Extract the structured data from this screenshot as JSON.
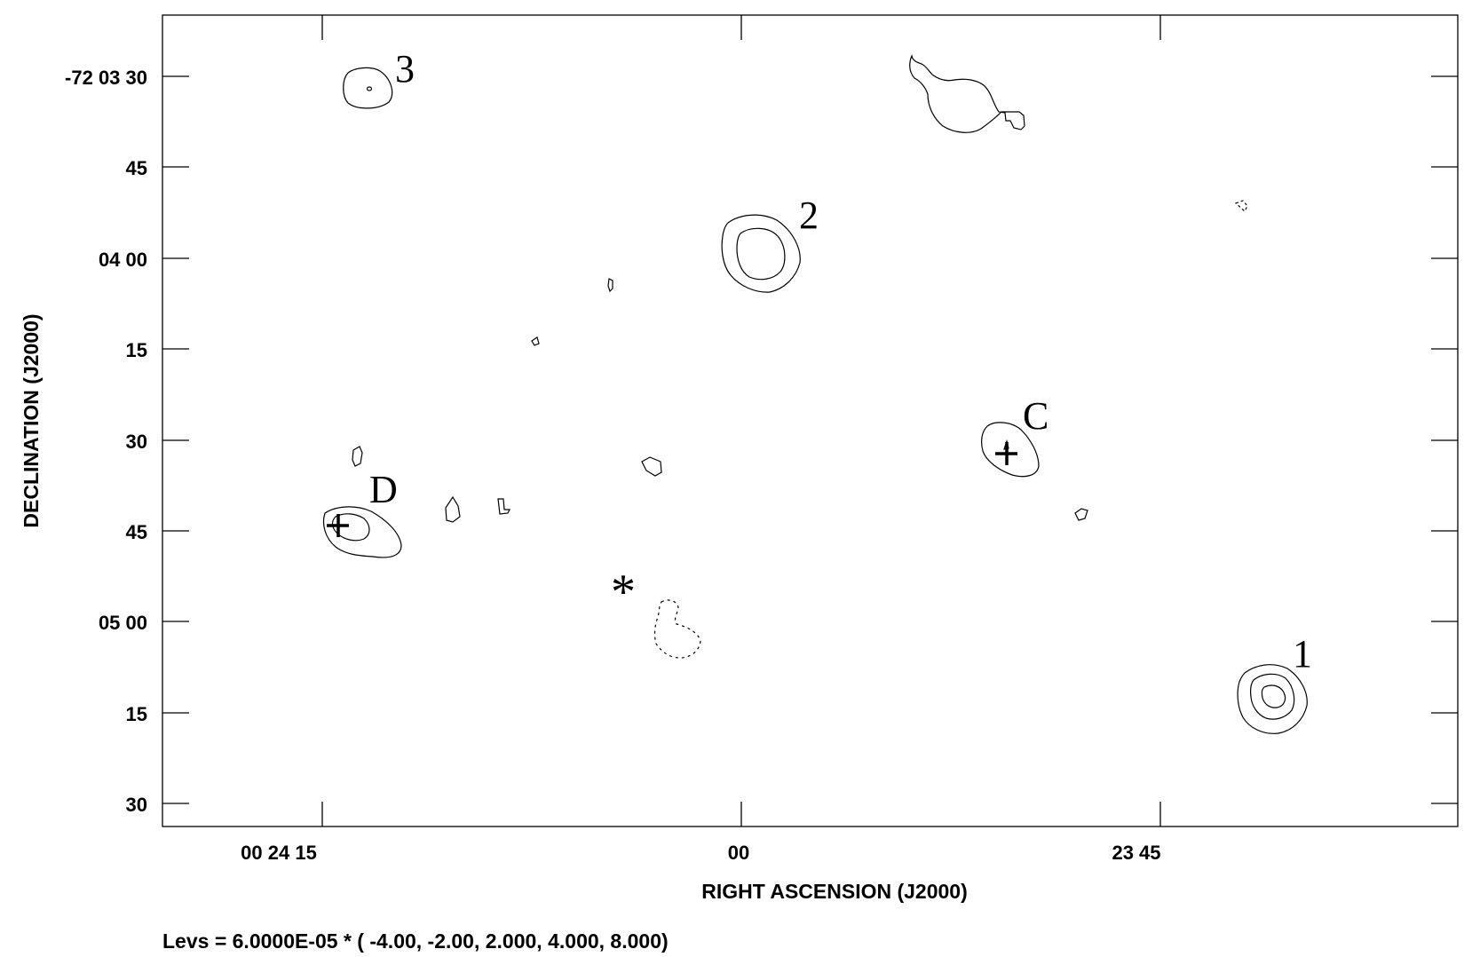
{
  "x_axis": {
    "title": "RIGHT ASCENSION (J2000)",
    "ticks": [
      "00 24 15",
      "00",
      "23 45"
    ]
  },
  "y_axis": {
    "title": "DECLINATION (J2000)",
    "ticks": [
      "-72 03 30",
      "45",
      "04 00",
      "15",
      "30",
      "45",
      "05 00",
      "15",
      "30"
    ]
  },
  "sources": [
    "1",
    "2",
    "3",
    "C",
    "D"
  ],
  "star_marker": "*",
  "levels_text": "Levs =  6.0000E-05 * (  -4.00, -2.00, 2.000, 4.000, 8.000)"
}
